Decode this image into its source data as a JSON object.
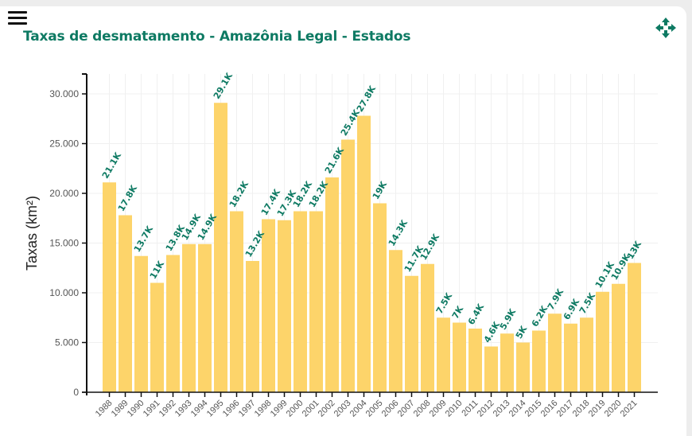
{
  "header": {
    "title": "Taxas de desmatamento - Amazônia Legal - Estados",
    "menu_icon": "hamburger-menu-icon",
    "move_icon": "move-arrows-icon"
  },
  "colors": {
    "bar": "#fdd46a",
    "label": "#0e7a63",
    "title": "#0e7a63",
    "icon": "#0e7a63"
  },
  "chart_data": {
    "type": "bar",
    "title": "Taxas de desmatamento - Amazônia Legal - Estados",
    "xlabel": "",
    "ylabel": "Taxas (km²)",
    "ylim": [
      0,
      32000
    ],
    "grid": true,
    "yticks": [
      0,
      5000,
      10000,
      15000,
      20000,
      25000,
      30000
    ],
    "ytick_labels": [
      "0",
      "5.000",
      "10.000",
      "15.000",
      "20.000",
      "25.000",
      "30.000"
    ],
    "categories": [
      "1988",
      "1989",
      "1990",
      "1991",
      "1992",
      "1993",
      "1994",
      "1995",
      "1996",
      "1997",
      "1998",
      "1999",
      "2000",
      "2001",
      "2002",
      "2003",
      "2004",
      "2005",
      "2006",
      "2007",
      "2008",
      "2009",
      "2010",
      "2011",
      "2012",
      "2013",
      "2014",
      "2015",
      "2016",
      "2017",
      "2018",
      "2019",
      "2020",
      "2021"
    ],
    "values": [
      21100,
      17800,
      13700,
      11000,
      13800,
      14900,
      14900,
      29100,
      18200,
      13200,
      17400,
      17300,
      18200,
      18200,
      21600,
      25400,
      27800,
      19000,
      14300,
      11700,
      12900,
      7500,
      7000,
      6400,
      4600,
      5900,
      5000,
      6200,
      7900,
      6900,
      7500,
      10100,
      10900,
      13000
    ],
    "data_labels": [
      "21.1K",
      "17.8K",
      "13.7K",
      "11K",
      "13.8K",
      "14.9K",
      "14.9K",
      "29.1K",
      "18.2K",
      "13.2K",
      "17.4K",
      "17.3K",
      "18.2K",
      "18.2K",
      "21.6K",
      "25.4K",
      "27.8K",
      "19K",
      "14.3K",
      "11.7K",
      "12.9K",
      "7.5K",
      "7K",
      "6.4K",
      "4.6K",
      "5.9K",
      "5K",
      "6.2K",
      "7.9K",
      "6.9K",
      "7.5K",
      "10.1K",
      "10.9K",
      "13K"
    ]
  }
}
